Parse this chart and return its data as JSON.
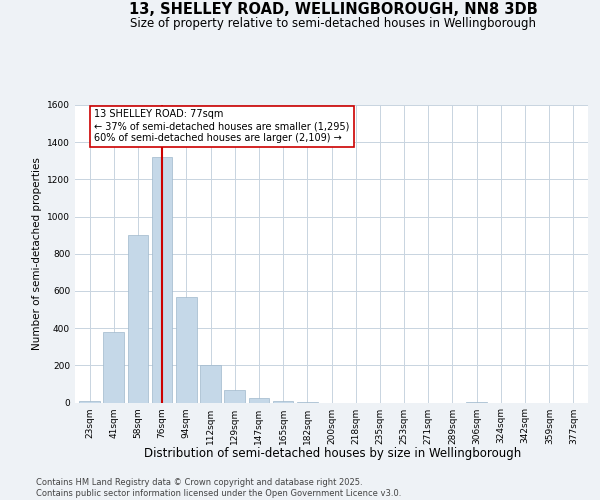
{
  "title": "13, SHELLEY ROAD, WELLINGBOROUGH, NN8 3DB",
  "subtitle": "Size of property relative to semi-detached houses in Wellingborough",
  "xlabel": "Distribution of semi-detached houses by size in Wellingborough",
  "ylabel": "Number of semi-detached properties",
  "categories": [
    "23sqm",
    "41sqm",
    "58sqm",
    "76sqm",
    "94sqm",
    "112sqm",
    "129sqm",
    "147sqm",
    "165sqm",
    "182sqm",
    "200sqm",
    "218sqm",
    "235sqm",
    "253sqm",
    "271sqm",
    "289sqm",
    "306sqm",
    "324sqm",
    "342sqm",
    "359sqm",
    "377sqm"
  ],
  "values": [
    10,
    380,
    900,
    1320,
    570,
    200,
    65,
    25,
    8,
    2,
    0,
    0,
    0,
    0,
    0,
    0,
    5,
    0,
    0,
    0,
    0
  ],
  "bar_color": "#c5d8e8",
  "bar_edge_color": "#a0b8cc",
  "property_label": "13 SHELLEY ROAD: 77sqm",
  "annotation_line1": "← 37% of semi-detached houses are smaller (1,295)",
  "annotation_line2": "60% of semi-detached houses are larger (2,109) →",
  "vline_color": "#cc0000",
  "vline_bin_index": 3,
  "ylim": [
    0,
    1600
  ],
  "yticks": [
    0,
    200,
    400,
    600,
    800,
    1000,
    1200,
    1400,
    1600
  ],
  "bg_color": "#eef2f6",
  "plot_bg_color": "#ffffff",
  "grid_color": "#c8d4e0",
  "annotation_box_color": "#ffffff",
  "annotation_box_edge": "#cc0000",
  "footer_line1": "Contains HM Land Registry data © Crown copyright and database right 2025.",
  "footer_line2": "Contains public sector information licensed under the Open Government Licence v3.0.",
  "title_fontsize": 10.5,
  "subtitle_fontsize": 8.5,
  "xlabel_fontsize": 8.5,
  "ylabel_fontsize": 7.5,
  "tick_fontsize": 6.5,
  "footer_fontsize": 6.0,
  "annot_fontsize": 7.0
}
